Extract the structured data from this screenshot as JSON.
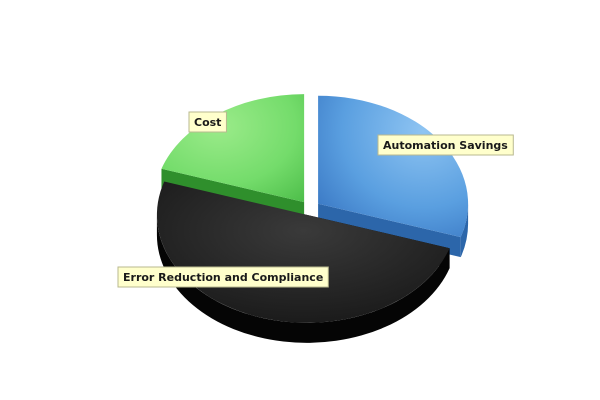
{
  "chart_data": {
    "type": "pie",
    "title": "",
    "style": "3d-exploded",
    "legend": "none",
    "slices": [
      {
        "label": "Automation Savings",
        "value": 30,
        "color": "#5a9fe0"
      },
      {
        "label": "Error Reduction and Compliance",
        "value": 50,
        "color": "#1e1e1e"
      },
      {
        "label": "Cost",
        "value": 20,
        "color": "#6fd86b"
      }
    ]
  }
}
